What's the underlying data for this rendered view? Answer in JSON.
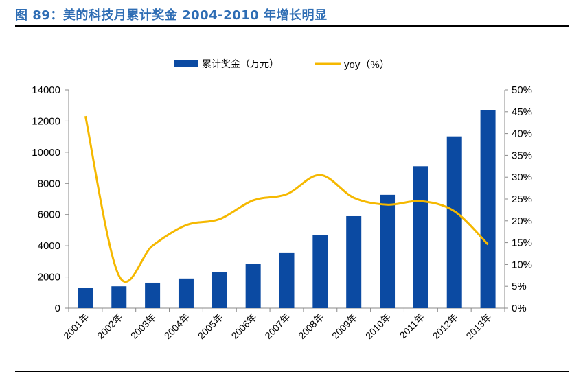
{
  "title": "图 89：美的科技月累计奖金 2004-2010 年增长明显",
  "chart_data": {
    "type": "bar+line",
    "categories": [
      "2001年",
      "2002年",
      "2003年",
      "2004年",
      "2005年",
      "2006年",
      "2007年",
      "2008年",
      "2009年",
      "2010年",
      "2011年",
      "2012年",
      "2013年"
    ],
    "series": [
      {
        "name": "累计奖金（万元）",
        "type": "bar",
        "axis": "left",
        "color": "#0b4aa2",
        "values": [
          1280,
          1400,
          1630,
          1900,
          2290,
          2860,
          3570,
          4700,
          5900,
          7270,
          9100,
          11020,
          12700
        ]
      },
      {
        "name": "yoy（%）",
        "type": "line",
        "axis": "right",
        "color": "#f5b800",
        "values": [
          44.0,
          7.4,
          14.3,
          19.0,
          20.4,
          24.7,
          26.1,
          30.5,
          25.3,
          23.7,
          24.5,
          22.2,
          14.6
        ]
      }
    ],
    "y_left": {
      "range": [
        0,
        14000
      ],
      "ticks": [
        "0",
        "2000",
        "4000",
        "6000",
        "8000",
        "10000",
        "12000",
        "14000"
      ]
    },
    "y_right": {
      "range": [
        0,
        50
      ],
      "ticks": [
        "0%",
        "5%",
        "10%",
        "15%",
        "20%",
        "25%",
        "30%",
        "35%",
        "40%",
        "45%",
        "50%"
      ]
    },
    "grid": false,
    "legend_position": "top"
  }
}
